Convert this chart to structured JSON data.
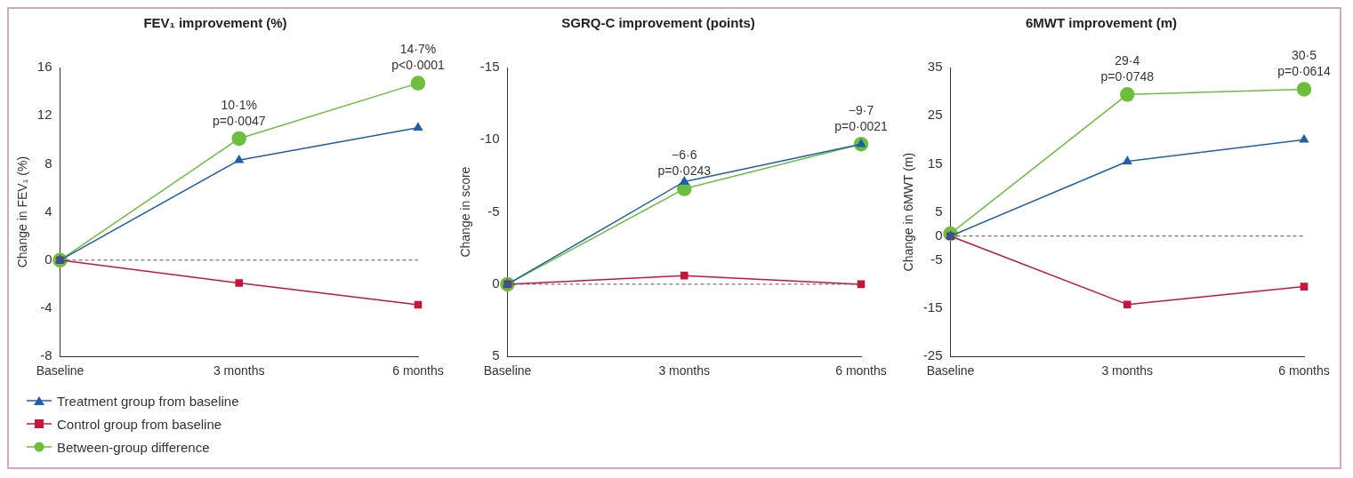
{
  "chart_data": [
    {
      "type": "line",
      "title": "FEV₁ improvement (%)",
      "ylabel": "Change in FEV₁ (%)",
      "categories": [
        "Baseline",
        "3 months",
        "6 months"
      ],
      "ylim": [
        -8,
        16
      ],
      "yticks": [
        -8,
        -4,
        0,
        4,
        8,
        12,
        16
      ],
      "grid": false,
      "legend": "bottom left",
      "line_style": "solid",
      "series": [
        {
          "name": "Treatment group from baseline",
          "color": "#1f5fa8",
          "marker": "triangle",
          "values": [
            0,
            8.3,
            11.0
          ]
        },
        {
          "name": "Control group from baseline",
          "color": "#c8143c",
          "marker": "square",
          "values": [
            0,
            -1.9,
            -3.7
          ]
        },
        {
          "name": "Between-group difference",
          "color": "#6cbf3c",
          "marker": "circle",
          "values": [
            0,
            10.1,
            14.7
          ]
        }
      ],
      "ref_lines": [
        {
          "axis": "y",
          "value": 0,
          "color": "#555555",
          "line_style": "dashed"
        }
      ],
      "annotations": [
        {
          "text": "10·1%\np=0·0047",
          "x": "3 months",
          "y": 10.1
        },
        {
          "text": "14·7%\np<0·0001",
          "x": "6 months",
          "y": 14.7
        }
      ]
    },
    {
      "type": "line",
      "title": "SGRQ-C improvement (points)",
      "ylabel": "Change in score",
      "categories": [
        "Baseline",
        "3 months",
        "6 months"
      ],
      "ylim": [
        5,
        -15
      ],
      "yticks": [
        5,
        0,
        -5,
        -10,
        -15
      ],
      "grid": false,
      "line_style": "solid",
      "series": [
        {
          "color": "#1f5fa8",
          "marker": "triangle",
          "values": [
            0,
            -7.1,
            -9.7
          ]
        },
        {
          "color": "#c8143c",
          "marker": "square",
          "values": [
            0,
            -0.6,
            0
          ]
        },
        {
          "color": "#6cbf3c",
          "marker": "circle",
          "values": [
            0,
            -6.6,
            -9.7
          ]
        }
      ],
      "ref_lines": [
        {
          "axis": "y",
          "value": 0,
          "color": "#555555",
          "line_style": "dashed"
        }
      ],
      "annotations": [
        {
          "text": "−6·6\np=0·0243",
          "x": "3 months",
          "y": -6.6
        },
        {
          "text": "−9·7\np=0·0021",
          "x": "6 months",
          "y": -9.7
        }
      ]
    },
    {
      "type": "line",
      "title": "6MWT improvement (m)",
      "ylabel": "Change in 6MWT (m)",
      "categories": [
        "Baseline",
        "3 months",
        "6 months"
      ],
      "ylim": [
        -25,
        35
      ],
      "yticks": [
        -25,
        -15,
        -5,
        0,
        5,
        15,
        25,
        35
      ],
      "grid": false,
      "line_style": "solid",
      "series": [
        {
          "color": "#1f5fa8",
          "marker": "triangle",
          "values": [
            0,
            15.5,
            20.0
          ]
        },
        {
          "color": "#c8143c",
          "marker": "square",
          "values": [
            0,
            -14.2,
            -10.5
          ]
        },
        {
          "color": "#6cbf3c",
          "marker": "circle",
          "values": [
            0.5,
            29.4,
            30.5
          ]
        }
      ],
      "ref_lines": [
        {
          "axis": "y",
          "value": 0,
          "color": "#555555",
          "line_style": "dashed"
        }
      ],
      "annotations": [
        {
          "text": "29·4\np=0·0748",
          "x": "3 months",
          "y": 29.4
        },
        {
          "text": "30·5\np=0·0614",
          "x": "6 months",
          "y": 30.5
        }
      ]
    }
  ]
}
